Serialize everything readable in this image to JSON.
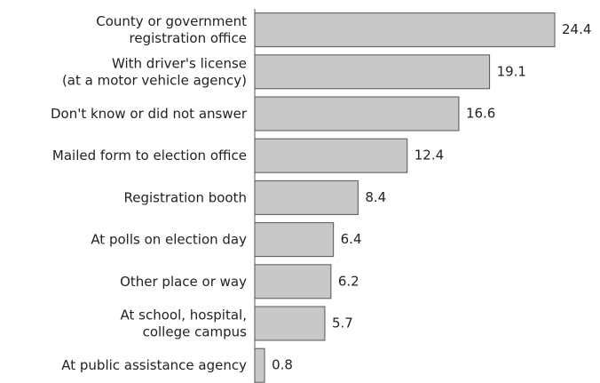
{
  "chart_data": {
    "type": "bar",
    "orientation": "horizontal",
    "categories": [
      "County or government\nregistration office",
      "With driver's license\n(at a motor vehicle agency)",
      "Don't know or did not answer",
      "Mailed form to election office",
      "Registration booth",
      "At polls on election day",
      "Other place or way",
      "At school, hospital,\ncollege campus",
      "At public assistance agency"
    ],
    "values": [
      24.4,
      19.1,
      16.6,
      12.4,
      8.4,
      6.4,
      6.2,
      5.7,
      0.8
    ],
    "color": "#c8c8c8"
  }
}
